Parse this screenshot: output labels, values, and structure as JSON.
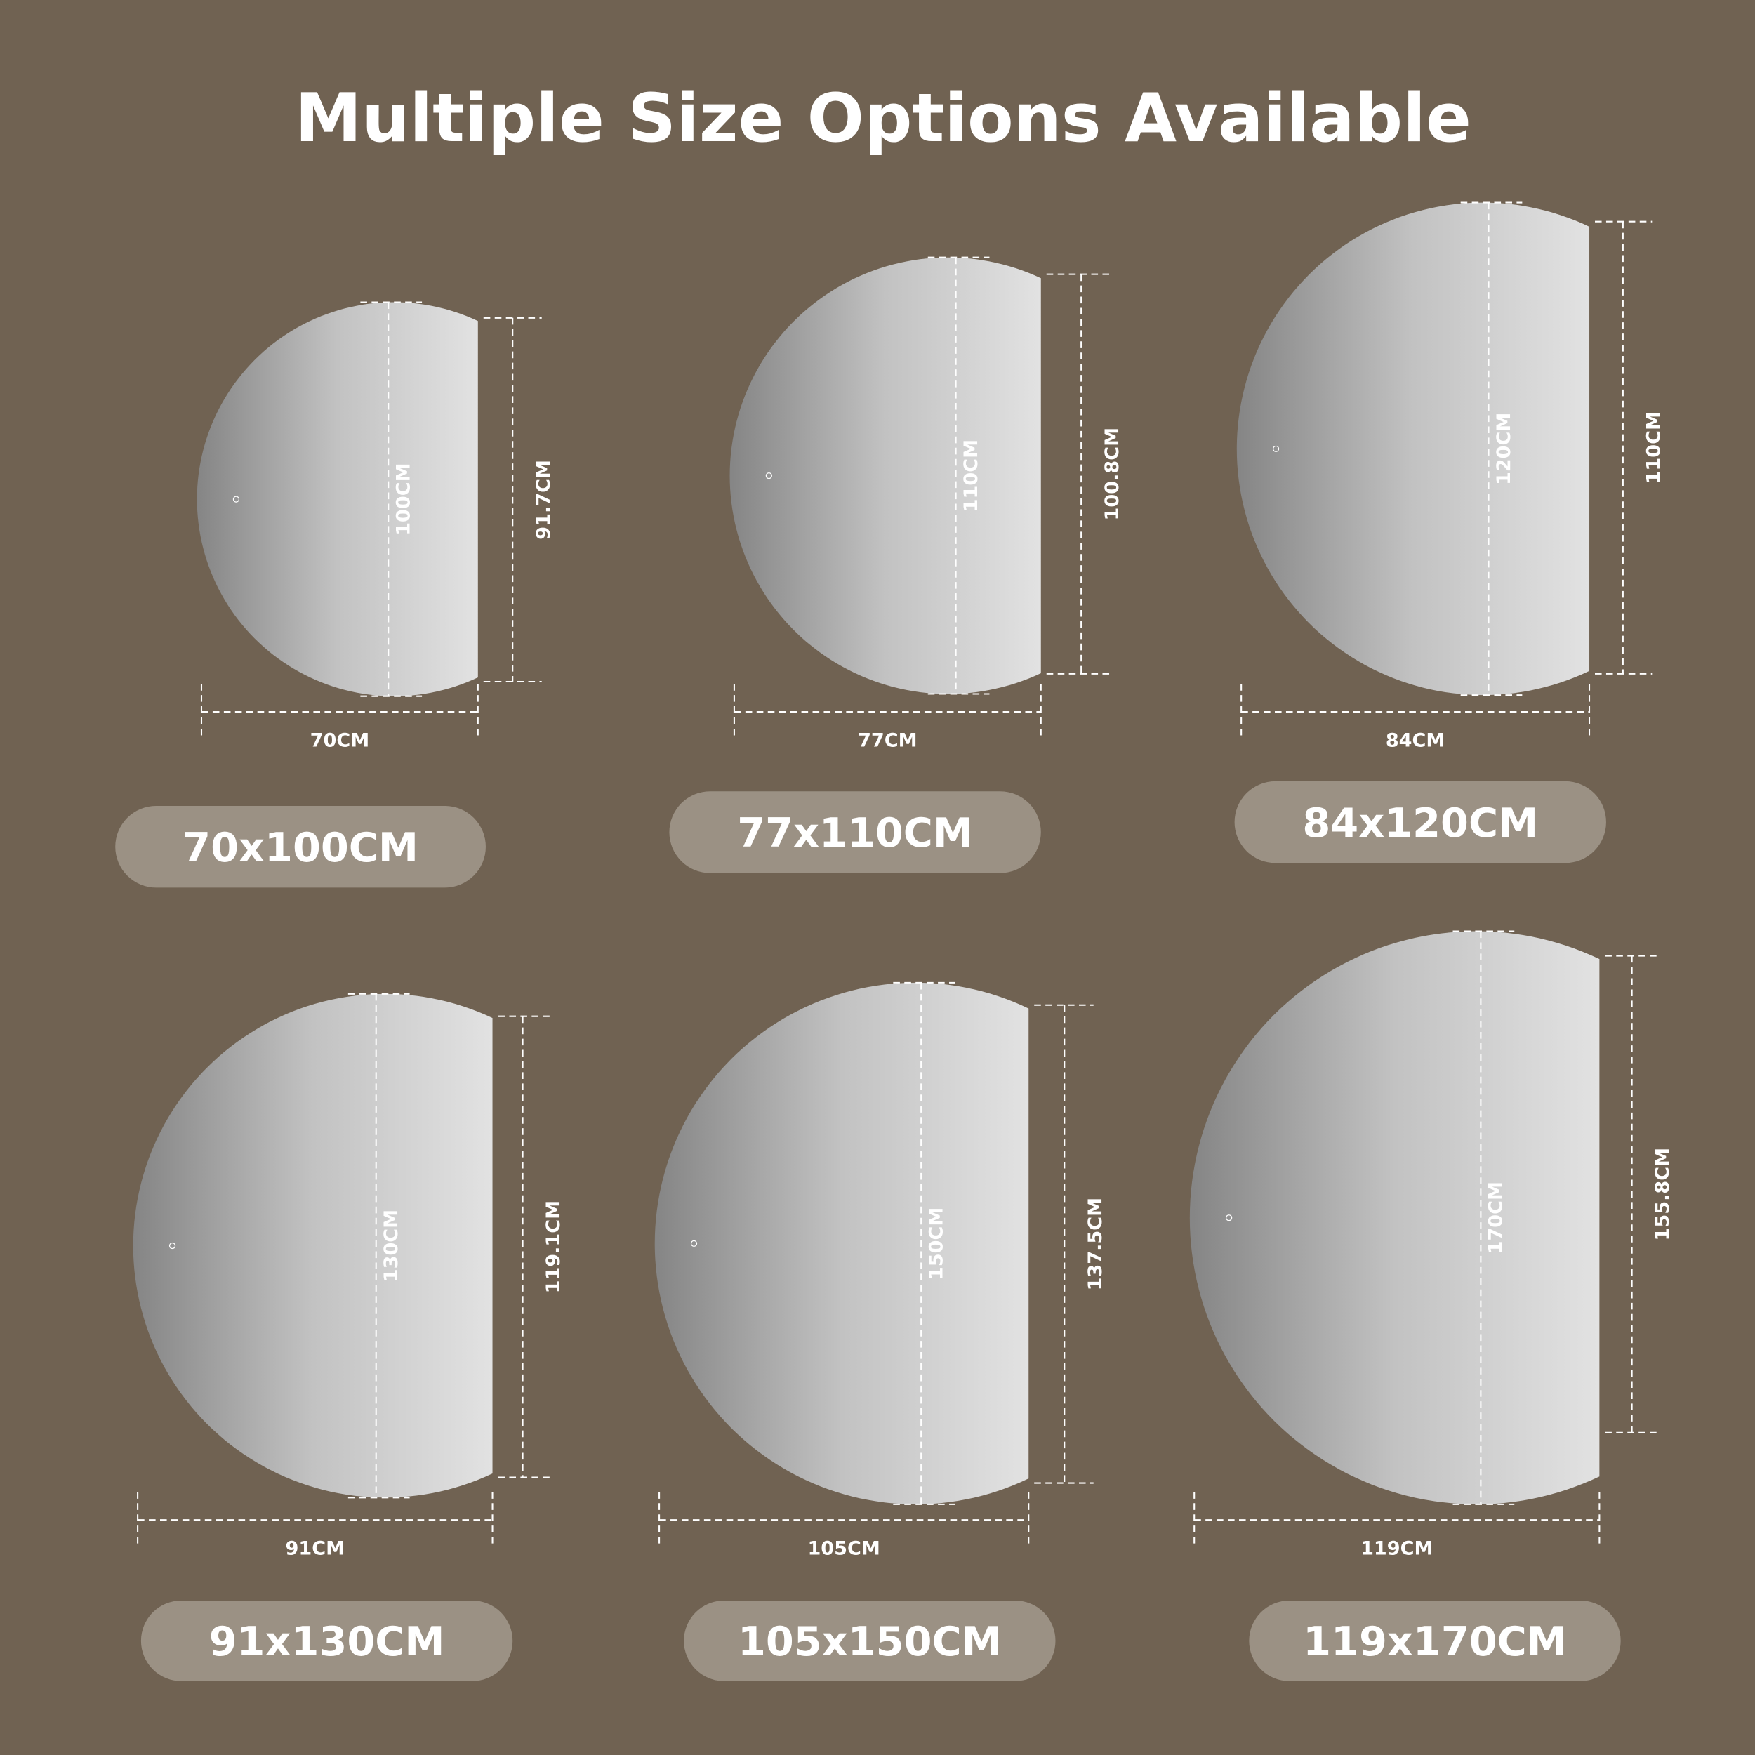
{
  "title": "Multiple Size Options Available",
  "colors": {
    "background": "#706252",
    "pill": "#9b9184",
    "mirror_dark": "#858585",
    "mirror_light": "#e2e2e2",
    "text": "#ffffff"
  },
  "sizes": [
    {
      "label": "70x100CM",
      "width": "70CM",
      "height": "100CM",
      "edge_height": "91.7CM"
    },
    {
      "label": "77x110CM",
      "width": "77CM",
      "height": "110CM",
      "edge_height": "100.8CM"
    },
    {
      "label": "84x120CM",
      "width": "84CM",
      "height": "120CM",
      "edge_height": "110CM"
    },
    {
      "label": "91x130CM",
      "width": "91CM",
      "height": "130CM",
      "edge_height": "119.1CM"
    },
    {
      "label": "105x150CM",
      "width": "105CM",
      "height": "150CM",
      "edge_height": "137.5CM"
    },
    {
      "label": "119x170CM",
      "width": "119CM",
      "height": "170CM",
      "edge_height": "155.8CM"
    }
  ]
}
